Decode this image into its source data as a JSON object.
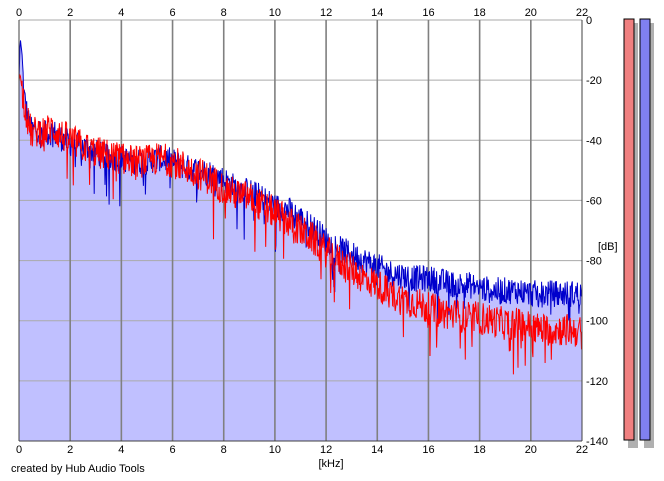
{
  "credit": "created by Hub Audio Tools",
  "colors": {
    "channel_left": "#ff0000",
    "channel_right": "#0000cc",
    "fill": "#c0c0ff",
    "grid": "#aaaaaa",
    "meter_left": "#f08080",
    "meter_right": "#8080f0"
  },
  "chart_data": {
    "type": "line",
    "title": "",
    "xlabel": "[kHz]",
    "ylabel": "[dB]",
    "xlim": [
      0,
      22
    ],
    "ylim": [
      -140,
      0
    ],
    "x_ticks": [
      "0",
      "2",
      "4",
      "6",
      "8",
      "10",
      "12",
      "14",
      "16",
      "18",
      "20",
      "22"
    ],
    "y_ticks": [
      "0",
      "-20",
      "-40",
      "-60",
      "-80",
      "-100",
      "-120",
      "-140"
    ],
    "grid": true,
    "x_ticks_on_top": true,
    "y_axis_side": "right",
    "series": [
      {
        "color": "#0000cc",
        "filled": true,
        "x": [
          0,
          0.05,
          0.1,
          0.2,
          0.35,
          0.5,
          0.7,
          1.0,
          1.3,
          1.6,
          2.0,
          2.5,
          3.0,
          3.5,
          4.0,
          4.5,
          5.0,
          5.5,
          6.0,
          6.5,
          7.0,
          7.5,
          8.0,
          8.5,
          9.0,
          9.5,
          10.0,
          10.5,
          11.0,
          11.5,
          12.0,
          12.5,
          13.0,
          13.5,
          14.0,
          14.5,
          15.0,
          15.5,
          16.0,
          16.5,
          17.0,
          17.5,
          18.0,
          18.5,
          19.0,
          19.5,
          20.0,
          20.5,
          21.0,
          21.5,
          22.0
        ],
        "values": [
          -20,
          -6,
          -10,
          -25,
          -33,
          -37,
          -36,
          -38,
          -37,
          -39,
          -41,
          -42,
          -44,
          -46,
          -46,
          -47,
          -47,
          -46,
          -47,
          -49,
          -50,
          -51,
          -53,
          -56,
          -57,
          -59,
          -62,
          -63,
          -66,
          -69,
          -73,
          -76,
          -78,
          -80,
          -82,
          -84,
          -85,
          -86,
          -86,
          -87,
          -88,
          -88,
          -89,
          -90,
          -90,
          -90,
          -91,
          -91,
          -91,
          -91,
          -91
        ]
      },
      {
        "color": "#ff0000",
        "filled": false,
        "x": [
          0,
          0.05,
          0.1,
          0.2,
          0.35,
          0.5,
          0.7,
          1.0,
          1.3,
          1.6,
          2.0,
          2.5,
          3.0,
          3.5,
          4.0,
          4.5,
          5.0,
          5.5,
          6.0,
          6.5,
          7.0,
          7.5,
          8.0,
          8.5,
          9.0,
          9.5,
          10.0,
          10.5,
          11.0,
          11.5,
          12.0,
          12.5,
          13.0,
          13.5,
          14.0,
          14.5,
          15.0,
          15.5,
          16.0,
          16.5,
          17.0,
          17.5,
          18.0,
          18.5,
          19.0,
          19.5,
          20.0,
          20.5,
          21.0,
          21.5,
          22.0
        ],
        "values": [
          -20,
          -18,
          -22,
          -27,
          -34,
          -38,
          -37,
          -37,
          -36,
          -38,
          -40,
          -42,
          -44,
          -45,
          -46,
          -47,
          -47,
          -46,
          -47,
          -49,
          -51,
          -53,
          -56,
          -58,
          -59,
          -62,
          -64,
          -67,
          -70,
          -73,
          -77,
          -80,
          -83,
          -86,
          -88,
          -91,
          -93,
          -94,
          -96,
          -97,
          -98,
          -99,
          -99,
          -100,
          -101,
          -101,
          -102,
          -103,
          -103,
          -103,
          -104
        ]
      }
    ]
  }
}
